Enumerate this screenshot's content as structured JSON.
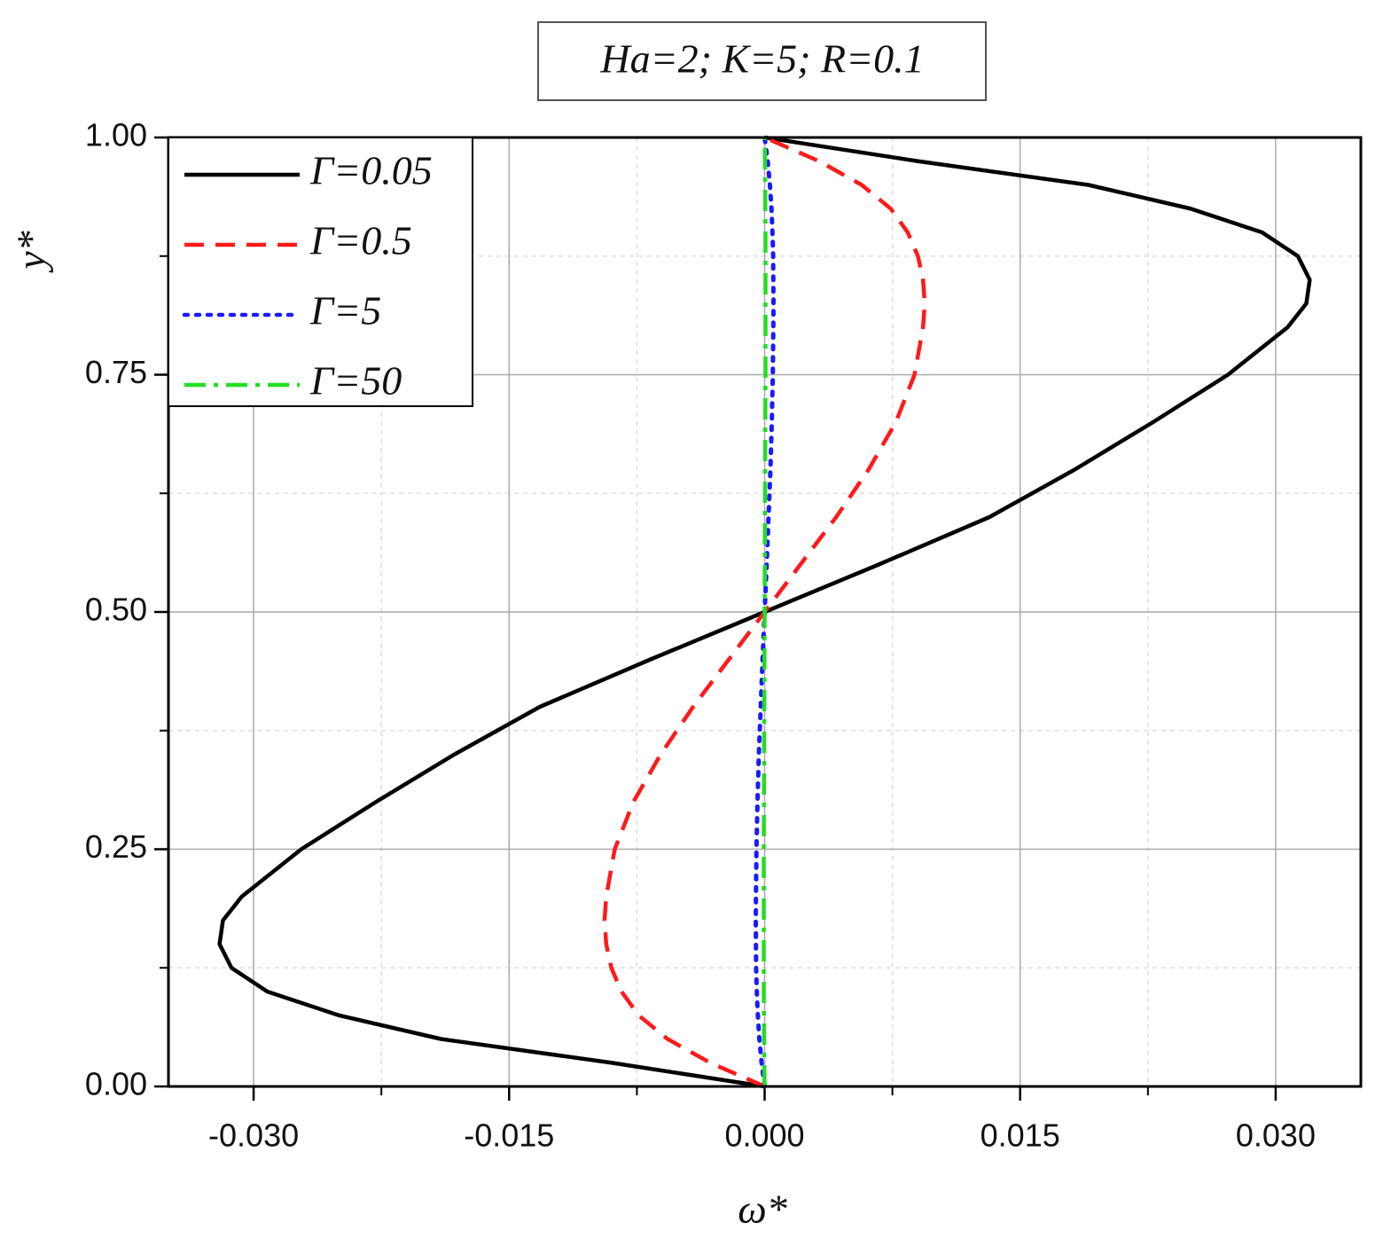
{
  "chart_data": {
    "type": "line",
    "title": "Ha=2; K=5; R=0.1",
    "x_label": "ω*",
    "y_label": "y*",
    "y": [
      0,
      0.025,
      0.05,
      0.075,
      0.1,
      0.125,
      0.15,
      0.175,
      0.2,
      0.25,
      0.3,
      0.35,
      0.4,
      0.45,
      0.5,
      0.55,
      0.6,
      0.65,
      0.7,
      0.75,
      0.8,
      0.825,
      0.85,
      0.875,
      0.9,
      0.925,
      0.95,
      0.975,
      1
    ],
    "series": [
      {
        "name": "Γ=0.05",
        "color": "#000000",
        "linestyle": "solid",
        "values": [
          0,
          -0.009,
          -0.019,
          -0.025,
          -0.0292,
          -0.0313,
          -0.032,
          -0.0318,
          -0.0307,
          -0.0272,
          -0.0228,
          -0.0182,
          -0.0132,
          -0.0067,
          0,
          0.0067,
          0.0132,
          0.0182,
          0.0228,
          0.0272,
          0.0307,
          0.0318,
          0.032,
          0.0313,
          0.0292,
          0.025,
          0.019,
          0.009,
          0
        ]
      },
      {
        "name": "Γ=0.5",
        "color": "#ff1a1a",
        "linestyle": "dashed",
        "values": [
          0,
          -0.0032,
          -0.0057,
          -0.0074,
          -0.0084,
          -0.009,
          -0.0093,
          -0.0094,
          -0.0093,
          -0.0088,
          -0.0077,
          -0.0061,
          -0.0042,
          -0.0021,
          0,
          0.0021,
          0.0042,
          0.0061,
          0.0077,
          0.0088,
          0.0093,
          0.0094,
          0.0093,
          0.009,
          0.0084,
          0.0074,
          0.0057,
          0.0032,
          0
        ]
      },
      {
        "name": "Γ=5",
        "color": "#1a1aff",
        "linestyle": "dotted",
        "values": [
          0,
          -0.00018,
          -0.00031,
          -0.0004,
          -0.00046,
          -0.0005,
          -0.00051,
          -0.00052,
          -0.00051,
          -0.00048,
          -0.00042,
          -0.00034,
          -0.00023,
          -0.00012,
          0,
          0.00012,
          0.00023,
          0.00034,
          0.00042,
          0.00048,
          0.00051,
          0.00052,
          0.00051,
          0.0005,
          0.00046,
          0.0004,
          0.00031,
          0.00018,
          0
        ]
      },
      {
        "name": "Γ=50",
        "color": "#22dd22",
        "linestyle": "dashdot",
        "values": [
          0,
          -2e-05,
          -3e-05,
          -4e-05,
          -5e-05,
          -5e-05,
          -5e-05,
          -5e-05,
          -5e-05,
          -5e-05,
          -4e-05,
          -3e-05,
          -2e-05,
          -1e-05,
          0,
          1e-05,
          2e-05,
          3e-05,
          4e-05,
          5e-05,
          5e-05,
          5e-05,
          5e-05,
          5e-05,
          5e-05,
          4e-05,
          3e-05,
          2e-05,
          0
        ]
      }
    ],
    "xlim": [
      -0.035,
      0.035
    ],
    "xticks": [
      {
        "value": -0.03,
        "label": "-0.030"
      },
      {
        "value": -0.015,
        "label": "-0.015"
      },
      {
        "value": 0,
        "label": "0.000"
      },
      {
        "value": 0.015,
        "label": "0.015"
      },
      {
        "value": 0.03,
        "label": "0.030"
      }
    ],
    "ylim": [
      0,
      1
    ],
    "yticks": [
      {
        "value": 0,
        "label": "0.00"
      },
      {
        "value": 0.25,
        "label": "0.25"
      },
      {
        "value": 0.5,
        "label": "0.50"
      },
      {
        "value": 0.75,
        "label": "0.75"
      },
      {
        "value": 1,
        "label": "1.00"
      }
    ],
    "grid": true,
    "legend": "upper-left"
  }
}
